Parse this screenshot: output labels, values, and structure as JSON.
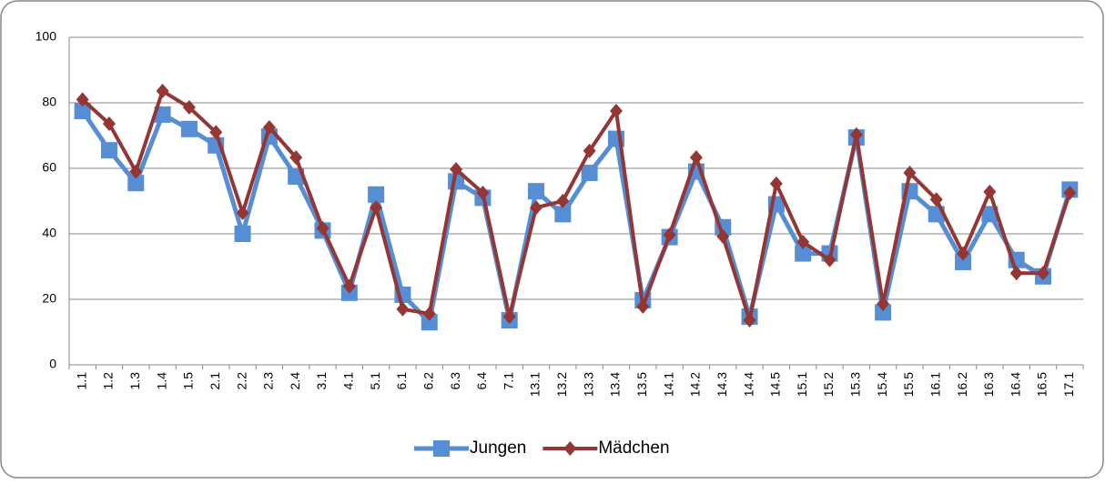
{
  "chart_data": {
    "type": "line",
    "categories": [
      "1.1",
      "1.2",
      "1.3",
      "1.4",
      "1.5",
      "2.1",
      "2.2",
      "2.3",
      "2.4",
      "3.1",
      "4.1",
      "5.1",
      "6.1",
      "6.2",
      "6.3",
      "6.4",
      "7.1",
      "13.1",
      "13.2",
      "13.3",
      "13.4",
      "13.5",
      "14.1",
      "14.2",
      "14.3",
      "14.4",
      "14.5",
      "15.1",
      "15.2",
      "15.3",
      "15.4",
      "15.5",
      "16.1",
      "16.2",
      "16.3",
      "16.4",
      "16.5",
      "17.1"
    ],
    "series": [
      {
        "name": "Jungen",
        "color": "#558ed5",
        "marker": "square",
        "values": [
          77.5,
          65.5,
          55.5,
          76.4,
          72,
          67,
          40,
          69.7,
          57.5,
          41,
          22,
          52,
          21.4,
          13,
          56,
          51,
          13.6,
          53,
          46,
          58.6,
          69,
          19.7,
          39,
          59,
          42,
          14.7,
          49,
          34,
          34,
          69.4,
          16,
          53,
          46,
          31.4,
          46,
          32,
          27,
          53.5
        ]
      },
      {
        "name": "Mädchen",
        "color": "#943634",
        "marker": "diamond",
        "values": [
          81,
          73.6,
          59,
          83.6,
          78.6,
          71,
          46.4,
          72.5,
          63.3,
          41.7,
          24,
          48,
          17,
          15.6,
          59.7,
          52.5,
          14.7,
          48,
          50,
          65.3,
          77.5,
          17.8,
          39.7,
          63.3,
          39.2,
          13.6,
          55.3,
          37.5,
          32,
          70.3,
          18.6,
          58.6,
          50.5,
          34,
          52.8,
          28,
          28,
          52.5
        ]
      }
    ],
    "ylim": [
      0,
      100
    ],
    "yticks": [
      0,
      20,
      40,
      60,
      80,
      100
    ],
    "grid": true,
    "legend": "bottom"
  }
}
